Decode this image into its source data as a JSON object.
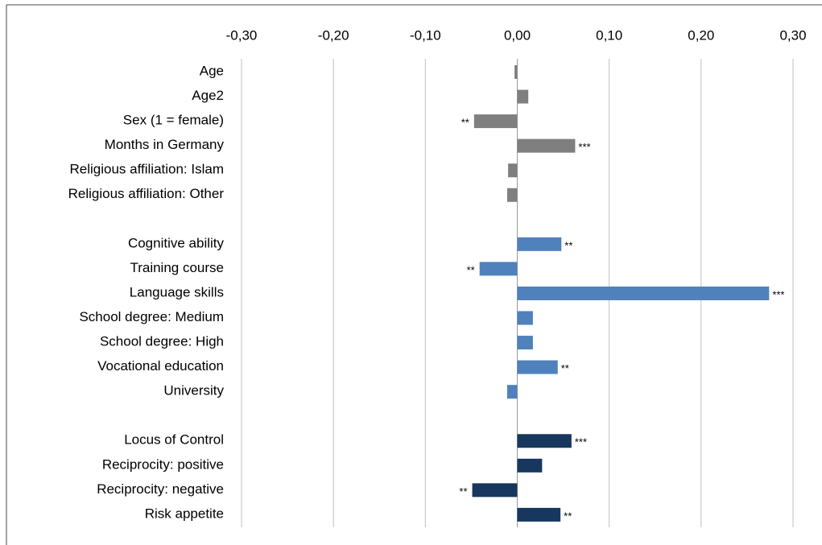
{
  "chart_data": {
    "type": "hbar",
    "categories": [
      "Age",
      "Age2",
      "Sex (1 = female)",
      "Months in Germany",
      "Religious affiliation: Islam",
      "Religious affiliation: Other",
      null,
      "Cognitive ability",
      "Training course",
      "Language skills",
      "School degree: Medium",
      "School degree: High",
      "Vocational education",
      "University",
      null,
      "Locus of Control",
      "Reciprocity: positive",
      "Reciprocity: negative",
      "Risk appetite"
    ],
    "values": [
      -0.003,
      0.012,
      -0.047,
      0.063,
      -0.01,
      -0.011,
      null,
      0.048,
      -0.041,
      0.274,
      0.017,
      0.017,
      0.044,
      -0.011,
      null,
      0.059,
      0.027,
      -0.049,
      0.047
    ],
    "colors": [
      "#7f7f7f",
      "#7f7f7f",
      "#7f7f7f",
      "#7f7f7f",
      "#7f7f7f",
      "#7f7f7f",
      null,
      "#4f81bd",
      "#4f81bd",
      "#4f81bd",
      "#4f81bd",
      "#4f81bd",
      "#4f81bd",
      "#4f81bd",
      null,
      "#17375e",
      "#17375e",
      "#17375e",
      "#17375e"
    ],
    "significance": [
      null,
      null,
      "**",
      "***",
      null,
      null,
      null,
      "**",
      "**",
      "***",
      null,
      null,
      "**",
      null,
      null,
      "***",
      null,
      "**",
      "**"
    ],
    "xlim": [
      -0.3,
      0.3
    ],
    "xticks": [
      {
        "value": -0.3,
        "label": "-0,30"
      },
      {
        "value": -0.2,
        "label": "-0,20"
      },
      {
        "value": -0.1,
        "label": "-0,10"
      },
      {
        "value": 0,
        "label": "0,00"
      },
      {
        "value": 0.1,
        "label": "0,10"
      },
      {
        "value": 0.2,
        "label": "0,20"
      },
      {
        "value": 0.3,
        "label": "0,30"
      }
    ],
    "grid": true
  }
}
